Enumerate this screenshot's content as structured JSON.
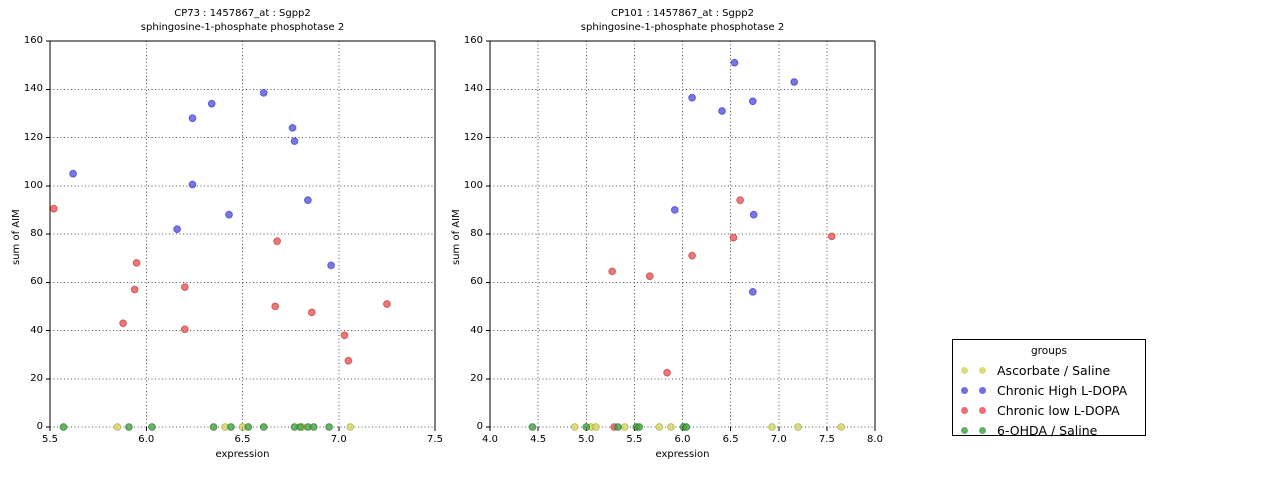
{
  "figure": {
    "background": "#ffffff",
    "grid_color": "#555555",
    "frame_color": "#000000"
  },
  "legend": {
    "title": "groups",
    "items": [
      {
        "label": "Ascorbate / Saline",
        "color": "#d6d662"
      },
      {
        "label": "Chronic High L-DOPA",
        "color": "#5555e6"
      },
      {
        "label": "Chronic low L-DOPA",
        "color": "#ee5555"
      },
      {
        "label": "6-OHDA / Saline",
        "color": "#44a344"
      }
    ]
  },
  "chart_data": [
    {
      "type": "scatter",
      "name": "cp73",
      "title_line1": "CP73 : 1457867_at : Sgpp2",
      "title_line2": "sphingosine-1-phosphate phosphotase 2",
      "xlabel": "expression",
      "ylabel": "sum of AIM",
      "xlim": [
        5.5,
        7.5
      ],
      "ylim": [
        0,
        160
      ],
      "xticks": [
        5.5,
        6.0,
        6.5,
        7.0,
        7.5
      ],
      "yticks": [
        0,
        20,
        40,
        60,
        80,
        100,
        120,
        140,
        160
      ],
      "grid": true,
      "series": [
        {
          "name": "Ascorbate / Saline",
          "color": "#d6d662",
          "edge": "#9a9a28",
          "points": [
            [
              5.85,
              0
            ],
            [
              6.41,
              0
            ],
            [
              6.5,
              0
            ],
            [
              6.81,
              0
            ],
            [
              7.06,
              0
            ]
          ]
        },
        {
          "name": "Chronic High L-DOPA",
          "color": "#5555e6",
          "edge": "#2222a8",
          "points": [
            [
              5.62,
              105
            ],
            [
              6.16,
              82
            ],
            [
              6.24,
              100.5
            ],
            [
              6.24,
              128
            ],
            [
              6.34,
              134
            ],
            [
              6.43,
              88
            ],
            [
              6.61,
              138.5
            ],
            [
              6.76,
              124
            ],
            [
              6.77,
              118.5
            ],
            [
              6.84,
              94
            ],
            [
              6.96,
              67
            ]
          ]
        },
        {
          "name": "Chronic low L-DOPA",
          "color": "#ee5555",
          "edge": "#a82222",
          "points": [
            [
              5.52,
              90.5
            ],
            [
              5.88,
              43
            ],
            [
              5.94,
              57
            ],
            [
              5.95,
              68
            ],
            [
              6.2,
              40.5
            ],
            [
              6.2,
              58
            ],
            [
              6.67,
              50
            ],
            [
              6.68,
              77
            ],
            [
              6.86,
              47.5
            ],
            [
              7.03,
              38
            ],
            [
              7.05,
              27.5
            ],
            [
              7.25,
              51
            ]
          ]
        },
        {
          "name": "6-OHDA / Saline",
          "color": "#44a344",
          "edge": "#186018",
          "points": [
            [
              5.57,
              0
            ],
            [
              5.91,
              0
            ],
            [
              6.03,
              0
            ],
            [
              6.35,
              0
            ],
            [
              6.44,
              0
            ],
            [
              6.53,
              0
            ],
            [
              6.61,
              0
            ],
            [
              6.77,
              0
            ],
            [
              6.8,
              0
            ],
            [
              6.84,
              0
            ],
            [
              6.87,
              0
            ],
            [
              6.95,
              0
            ]
          ]
        }
      ]
    },
    {
      "type": "scatter",
      "name": "cp101",
      "title_line1": "CP101 : 1457867_at : Sgpp2",
      "title_line2": "sphingosine-1-phosphate phosphotase 2",
      "xlabel": "expression",
      "ylabel": "sum of AIM",
      "xlim": [
        4.0,
        8.0
      ],
      "ylim": [
        0,
        160
      ],
      "xticks": [
        4.0,
        4.5,
        5.0,
        5.5,
        6.0,
        6.5,
        7.0,
        7.5,
        8.0
      ],
      "yticks": [
        0,
        20,
        40,
        60,
        80,
        100,
        120,
        140,
        160
      ],
      "grid": true,
      "series": [
        {
          "name": "Ascorbate / Saline",
          "color": "#d6d662",
          "edge": "#9a9a28",
          "points": [
            [
              4.88,
              0
            ],
            [
              5.05,
              0
            ],
            [
              5.1,
              0
            ],
            [
              5.4,
              0
            ],
            [
              5.76,
              0
            ],
            [
              5.88,
              0
            ],
            [
              6.93,
              0
            ],
            [
              7.2,
              0
            ],
            [
              7.65,
              0
            ]
          ]
        },
        {
          "name": "Chronic High L-DOPA",
          "color": "#5555e6",
          "edge": "#2222a8",
          "points": [
            [
              5.92,
              90
            ],
            [
              6.1,
              136.5
            ],
            [
              6.41,
              131
            ],
            [
              6.54,
              151
            ],
            [
              6.73,
              135
            ],
            [
              6.74,
              88
            ],
            [
              6.73,
              56
            ],
            [
              7.16,
              143
            ]
          ]
        },
        {
          "name": "Chronic low L-DOPA",
          "color": "#ee5555",
          "edge": "#a82222",
          "points": [
            [
              5.27,
              64.5
            ],
            [
              5.29,
              0
            ],
            [
              5.66,
              62.5
            ],
            [
              5.84,
              22.5
            ],
            [
              6.1,
              71
            ],
            [
              6.53,
              78.5
            ],
            [
              6.6,
              94
            ],
            [
              7.55,
              79
            ]
          ]
        },
        {
          "name": "6-OHDA / Saline",
          "color": "#44a344",
          "edge": "#186018",
          "points": [
            [
              4.44,
              0
            ],
            [
              5.0,
              0
            ],
            [
              5.33,
              0
            ],
            [
              5.52,
              0
            ],
            [
              5.55,
              0
            ],
            [
              6.01,
              0
            ],
            [
              6.04,
              0
            ]
          ]
        }
      ]
    }
  ]
}
